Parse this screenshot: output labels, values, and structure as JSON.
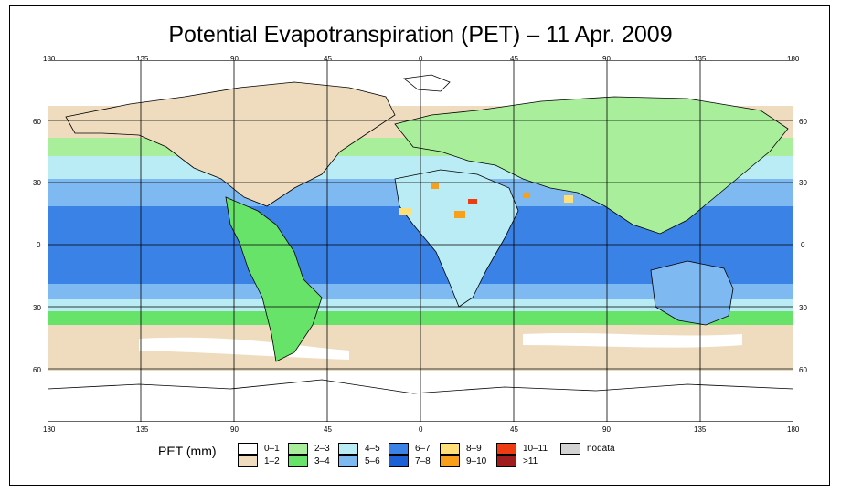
{
  "title": "Potential Evapotranspiration (PET) – 11 Apr. 2009",
  "axes": {
    "lon_ticks": [
      "180",
      "135",
      "90",
      "45",
      "0",
      "45",
      "90",
      "135",
      "180"
    ],
    "lat_ticks": [
      "60",
      "30",
      "0",
      "30",
      "60"
    ]
  },
  "legend": {
    "label": "PET (mm)",
    "items": [
      {
        "label": "0–1",
        "color": "#ffffff"
      },
      {
        "label": "1–2",
        "color": "#efdcbf"
      },
      {
        "label": "2–3",
        "color": "#a9ef9b"
      },
      {
        "label": "3–4",
        "color": "#67e36a"
      },
      {
        "label": "4–5",
        "color": "#b9ecf4"
      },
      {
        "label": "5–6",
        "color": "#7fb9f2"
      },
      {
        "label": "6–7",
        "color": "#3a82e6"
      },
      {
        "label": "7–8",
        "color": "#1c62d6"
      },
      {
        "label": "8–9",
        "color": "#ffdf78"
      },
      {
        "label": "9–10",
        "color": "#f9a01b"
      },
      {
        "label": "10–11",
        "color": "#ef3b12"
      },
      {
        "label": ">11",
        "color": "#a11d1d"
      },
      {
        "label": "nodata",
        "color": "#d3d3d3"
      }
    ]
  },
  "colors": {
    "sea_line": "#000000"
  }
}
